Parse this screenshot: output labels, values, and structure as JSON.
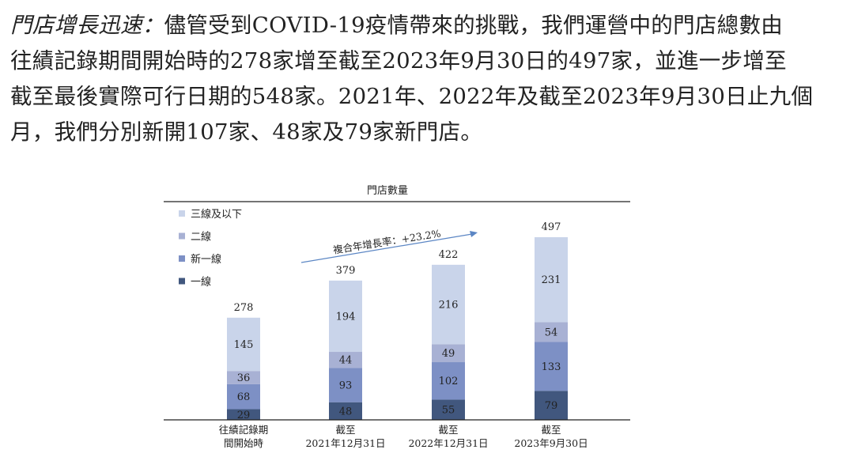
{
  "paragraph": {
    "lead": "門店增長迅速：",
    "line1_rest": "儘管受到COVID-19疫情帶來的挑戰，我們運營中的門店總數由",
    "line2": "往績記錄期間開始時的278家增至截至2023年9月30日的497家，並進一步增至",
    "line3": "截至最後實際可行日期的548家。2021年、2022年及截至2023年9月30日止九個",
    "line4": "月，我們分別新開107家、48家及79家新門店。"
  },
  "colors": {
    "tier1": "#41577e",
    "newtier1": "#7d90c5",
    "tier2": "#a8b1d4",
    "tier3": "#c9d4ea",
    "arrow": "#5b86c4",
    "axis": "#222222"
  },
  "chart_data": {
    "type": "bar",
    "stacked": true,
    "title": "門店數量",
    "legend": [
      "三線及以下",
      "二線",
      "新一線",
      "一線"
    ],
    "growth_label": "複合年增長率：+23.2%",
    "categories": [
      [
        "往績記錄期",
        "間開始時"
      ],
      [
        "截至",
        "2021年12月31日"
      ],
      [
        "截至",
        "2022年12月31日"
      ],
      [
        "截至",
        "2023年9月30日"
      ]
    ],
    "series": [
      {
        "name": "一線",
        "values": [
          29,
          48,
          55,
          79
        ]
      },
      {
        "name": "新一線",
        "values": [
          68,
          93,
          102,
          133
        ]
      },
      {
        "name": "二線",
        "values": [
          36,
          44,
          49,
          54
        ]
      },
      {
        "name": "三線及以下",
        "values": [
          145,
          194,
          216,
          231
        ]
      }
    ],
    "totals": [
      278,
      379,
      422,
      497
    ],
    "ylim": [
      0,
      497
    ]
  }
}
